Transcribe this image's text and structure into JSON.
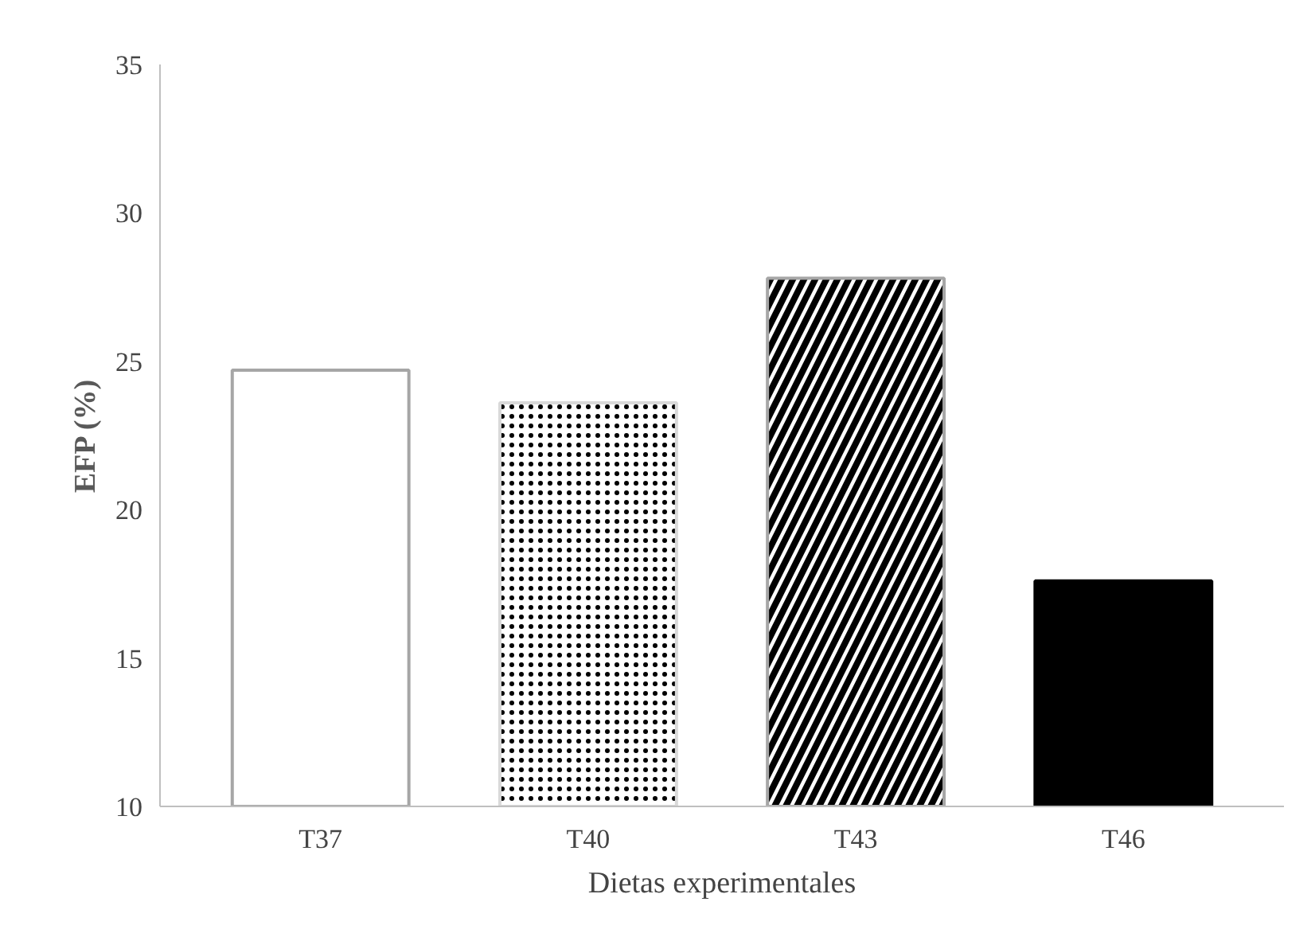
{
  "chart_data": {
    "type": "bar",
    "categories": [
      "T37",
      "T40",
      "T43",
      "T46"
    ],
    "values": [
      24.7,
      23.6,
      27.8,
      17.6
    ],
    "colors": [
      "#ffffff",
      "#d9d9d9",
      "#ffffff",
      "#000000"
    ],
    "xlabel": "Dietas experimentales",
    "ylabel": "EFP (%)",
    "ylim": [
      10,
      35
    ],
    "yticks": [
      10,
      15,
      20,
      25,
      30,
      35
    ],
    "grid": false
  }
}
